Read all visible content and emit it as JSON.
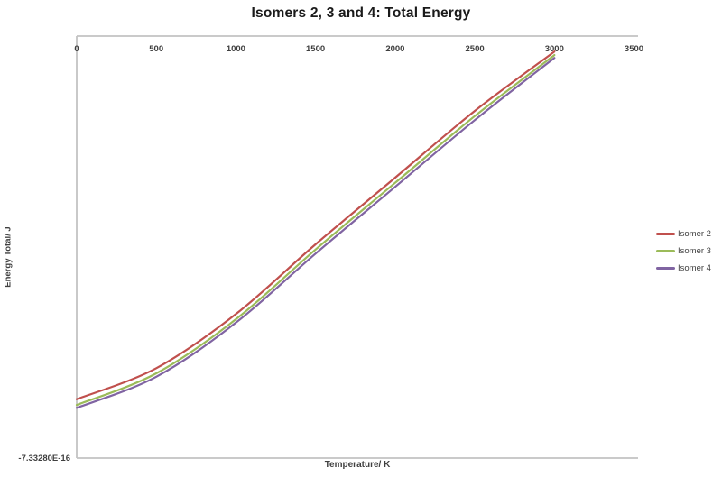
{
  "chart": {
    "title": "Isomers 2, 3 and 4: Total Energy"
  },
  "axes": {
    "x_title": "Temperature/ K",
    "y_title": "Energy Total/ J",
    "y_min_label": "-7.33280E-16"
  },
  "colors": {
    "axis_line": "#c3c3c3",
    "tick_text": "#3f3f3f",
    "isomer2": "#C0504D",
    "isomer3": "#9BBB59",
    "isomer4": "#8064A2"
  },
  "chart_data": {
    "type": "line",
    "title": "Isomers 2, 3 and 4: Total Energy",
    "xlabel": "Temperature/ K",
    "ylabel": "Energy Total/ J",
    "x": [
      0,
      500,
      1000,
      1500,
      2000,
      2500,
      3000
    ],
    "x_ticks": [
      0,
      500,
      1000,
      1500,
      2000,
      2500,
      3000,
      3500
    ],
    "xlim": [
      0,
      3500
    ],
    "ylim": [
      -7.3328e-16,
      0
    ],
    "y_tick_labels": [
      "-7.33280E-16"
    ],
    "grid": false,
    "legend_position": "right",
    "series": [
      {
        "name": "Isomer 2",
        "color": "#C0504D",
        "values": [
          -6.31e-16,
          -5.77e-16,
          -4.83e-16,
          -3.62e-16,
          -2.46e-16,
          -1.3e-16,
          -2.7e-17
        ]
      },
      {
        "name": "Isomer 3",
        "color": "#9BBB59",
        "values": [
          -6.41e-16,
          -5.86e-16,
          -4.92e-16,
          -3.71e-16,
          -2.55e-16,
          -1.39e-16,
          -3.3e-17
        ]
      },
      {
        "name": "Isomer 4",
        "color": "#8064A2",
        "values": [
          -6.46e-16,
          -5.92e-16,
          -4.98e-16,
          -3.78e-16,
          -2.62e-16,
          -1.46e-16,
          -3.8e-17
        ]
      }
    ]
  }
}
